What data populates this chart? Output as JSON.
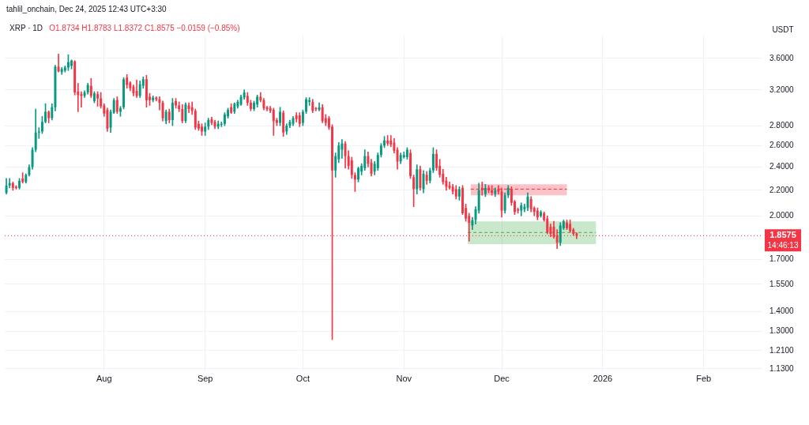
{
  "chart_data": {
    "type": "candlestick",
    "title": "XRP · 1D",
    "subtitle": "O1.8734 H1.8783 L1.8372 C1.8575 −0.0159 (−0.85%)",
    "ylabel": "USDT",
    "annotations": [
      "tahlil_onchain, Dec 24, 2025 12:43 UTC+3:30"
    ],
    "log": "y",
    "grid": true,
    "xlim": [
      "2025-07-01T12:00",
      "2026-02-19"
    ],
    "xticks": [
      {
        "value": "2025-08-01",
        "label": "Aug"
      },
      {
        "value": "2025-09-01",
        "label": "Sep"
      },
      {
        "value": "2025-10-01",
        "label": "Oct"
      },
      {
        "value": "2025-11-01",
        "label": "Nov"
      },
      {
        "value": "2025-12-01",
        "label": "Dec"
      },
      {
        "value": "2026-01-01",
        "label": "2026"
      },
      {
        "value": "2026-02-01",
        "label": "Feb"
      }
    ],
    "ylim": [
      1.12,
      3.92
    ],
    "yticks": [
      {
        "value": 3.6,
        "label": "3.6000"
      },
      {
        "value": 3.2,
        "label": "3.2000"
      },
      {
        "value": 2.8,
        "label": "2.8000"
      },
      {
        "value": 2.6,
        "label": "2.6000"
      },
      {
        "value": 2.4,
        "label": "2.4000"
      },
      {
        "value": 2.2,
        "label": "2.2000"
      },
      {
        "value": 2.0,
        "label": "2.0000"
      },
      {
        "value": 1.7,
        "label": "1.7000"
      },
      {
        "value": 1.55,
        "label": "1.5500"
      },
      {
        "value": 1.4,
        "label": "1.4000"
      },
      {
        "value": 1.3,
        "label": "1.3000"
      },
      {
        "value": 1.21,
        "label": "1.2100"
      },
      {
        "value": 1.13,
        "label": "1.1300"
      }
    ],
    "ref_lines": [
      {
        "axis": "y",
        "value": 1.8575,
        "label": "1.8575\n14:46:13",
        "color": "#f23645",
        "line_style": "dotted"
      }
    ],
    "x": [
      "2025-07-02",
      "2025-07-03",
      "2025-07-04",
      "2025-07-05",
      "2025-07-06",
      "2025-07-07",
      "2025-07-08",
      "2025-07-09",
      "2025-07-10",
      "2025-07-11",
      "2025-07-12",
      "2025-07-13",
      "2025-07-14",
      "2025-07-15",
      "2025-07-16",
      "2025-07-17",
      "2025-07-18",
      "2025-07-19",
      "2025-07-20",
      "2025-07-21",
      "2025-07-22",
      "2025-07-23",
      "2025-07-24",
      "2025-07-25",
      "2025-07-26",
      "2025-07-27",
      "2025-07-28",
      "2025-07-29",
      "2025-07-30",
      "2025-07-31",
      "2025-08-01",
      "2025-08-02",
      "2025-08-03",
      "2025-08-04",
      "2025-08-05",
      "2025-08-06",
      "2025-08-07",
      "2025-08-08",
      "2025-08-09",
      "2025-08-10",
      "2025-08-11",
      "2025-08-12",
      "2025-08-13",
      "2025-08-14",
      "2025-08-15",
      "2025-08-16",
      "2025-08-17",
      "2025-08-18",
      "2025-08-19",
      "2025-08-20",
      "2025-08-21",
      "2025-08-22",
      "2025-08-23",
      "2025-08-24",
      "2025-08-25",
      "2025-08-26",
      "2025-08-27",
      "2025-08-28",
      "2025-08-29",
      "2025-08-30",
      "2025-08-31",
      "2025-09-01",
      "2025-09-02",
      "2025-09-03",
      "2025-09-04",
      "2025-09-05",
      "2025-09-06",
      "2025-09-07",
      "2025-09-08",
      "2025-09-09",
      "2025-09-10",
      "2025-09-11",
      "2025-09-12",
      "2025-09-13",
      "2025-09-14",
      "2025-09-15",
      "2025-09-16",
      "2025-09-17",
      "2025-09-18",
      "2025-09-19",
      "2025-09-20",
      "2025-09-21",
      "2025-09-22",
      "2025-09-23",
      "2025-09-24",
      "2025-09-25",
      "2025-09-26",
      "2025-09-27",
      "2025-09-28",
      "2025-09-29",
      "2025-09-30",
      "2025-10-01",
      "2025-10-02",
      "2025-10-03",
      "2025-10-04",
      "2025-10-05",
      "2025-10-06",
      "2025-10-07",
      "2025-10-08",
      "2025-10-09",
      "2025-10-10",
      "2025-10-11",
      "2025-10-12",
      "2025-10-13",
      "2025-10-14",
      "2025-10-15",
      "2025-10-16",
      "2025-10-17",
      "2025-10-18",
      "2025-10-19",
      "2025-10-20",
      "2025-10-21",
      "2025-10-22",
      "2025-10-23",
      "2025-10-24",
      "2025-10-25",
      "2025-10-26",
      "2025-10-27",
      "2025-10-28",
      "2025-10-29",
      "2025-10-30",
      "2025-10-31",
      "2025-11-01",
      "2025-11-02",
      "2025-11-03",
      "2025-11-04",
      "2025-11-05",
      "2025-11-06",
      "2025-11-07",
      "2025-11-08",
      "2025-11-09",
      "2025-11-10",
      "2025-11-11",
      "2025-11-12",
      "2025-11-13",
      "2025-11-14",
      "2025-11-15",
      "2025-11-16",
      "2025-11-17",
      "2025-11-18",
      "2025-11-19",
      "2025-11-20",
      "2025-11-21",
      "2025-11-22",
      "2025-11-23",
      "2025-11-24",
      "2025-11-25",
      "2025-11-26",
      "2025-11-27",
      "2025-11-28",
      "2025-11-29",
      "2025-11-30",
      "2025-12-01",
      "2025-12-02",
      "2025-12-03",
      "2025-12-04",
      "2025-12-05",
      "2025-12-06",
      "2025-12-07",
      "2025-12-08",
      "2025-12-09",
      "2025-12-10",
      "2025-12-11",
      "2025-12-12",
      "2025-12-13",
      "2025-12-14",
      "2025-12-15",
      "2025-12-16",
      "2025-12-17",
      "2025-12-18",
      "2025-12-19",
      "2025-12-20",
      "2025-12-21",
      "2025-12-22",
      "2025-12-23",
      "2025-12-24"
    ],
    "ohlc": [
      [
        2.18,
        2.3,
        2.17,
        2.24
      ],
      [
        2.24,
        2.3,
        2.22,
        2.26
      ],
      [
        2.26,
        2.27,
        2.2,
        2.22
      ],
      [
        2.23,
        2.24,
        2.21,
        2.22
      ],
      [
        2.22,
        2.3,
        2.21,
        2.28
      ],
      [
        2.3,
        2.35,
        2.26,
        2.27
      ],
      [
        2.27,
        2.34,
        2.26,
        2.33
      ],
      [
        2.33,
        2.42,
        2.32,
        2.4
      ],
      [
        2.4,
        2.58,
        2.38,
        2.56
      ],
      [
        2.56,
        2.98,
        2.54,
        2.73
      ],
      [
        2.73,
        2.78,
        2.67,
        2.74
      ],
      [
        2.74,
        2.9,
        2.72,
        2.84
      ],
      [
        2.84,
        3.04,
        2.83,
        2.95
      ],
      [
        2.95,
        2.96,
        2.83,
        2.88
      ],
      [
        2.88,
        3.04,
        2.86,
        3.0
      ],
      [
        3.0,
        3.51,
        2.96,
        3.49
      ],
      [
        3.49,
        3.66,
        3.42,
        3.43
      ],
      [
        3.42,
        3.48,
        3.39,
        3.46
      ],
      [
        3.44,
        3.5,
        3.42,
        3.48
      ],
      [
        3.48,
        3.65,
        3.44,
        3.55
      ],
      [
        3.5,
        3.58,
        3.46,
        3.57
      ],
      [
        3.56,
        3.57,
        3.14,
        3.17
      ],
      [
        3.18,
        3.28,
        2.95,
        3.14
      ],
      [
        3.15,
        3.18,
        3.0,
        3.13
      ],
      [
        3.13,
        3.19,
        3.11,
        3.17
      ],
      [
        3.17,
        3.28,
        3.15,
        3.26
      ],
      [
        3.25,
        3.34,
        3.11,
        3.13
      ],
      [
        3.07,
        3.18,
        3.05,
        3.16
      ],
      [
        3.15,
        3.18,
        3.01,
        3.1
      ],
      [
        3.1,
        3.17,
        2.99,
        3.01
      ],
      [
        3.02,
        3.04,
        2.9,
        2.93
      ],
      [
        2.97,
        2.99,
        2.74,
        2.77
      ],
      [
        2.78,
        2.97,
        2.73,
        2.95
      ],
      [
        2.94,
        3.1,
        2.93,
        3.08
      ],
      [
        3.08,
        3.12,
        2.93,
        2.95
      ],
      [
        2.95,
        3.01,
        2.9,
        2.99
      ],
      [
        3.0,
        3.35,
        2.98,
        3.33
      ],
      [
        3.35,
        3.39,
        3.22,
        3.26
      ],
      [
        3.29,
        3.3,
        3.19,
        3.22
      ],
      [
        3.24,
        3.26,
        3.13,
        3.16
      ],
      [
        3.19,
        3.32,
        3.11,
        3.13
      ],
      [
        3.13,
        3.31,
        3.11,
        3.27
      ],
      [
        3.25,
        3.36,
        3.22,
        3.33
      ],
      [
        3.33,
        3.38,
        3.0,
        3.08
      ],
      [
        3.12,
        3.16,
        3.02,
        3.08
      ],
      [
        3.08,
        3.13,
        3.06,
        3.11
      ],
      [
        3.11,
        3.12,
        3.07,
        3.09
      ],
      [
        3.09,
        3.12,
        2.97,
        3.05
      ],
      [
        3.05,
        3.07,
        2.85,
        2.88
      ],
      [
        2.85,
        2.97,
        2.82,
        2.95
      ],
      [
        2.95,
        2.98,
        2.83,
        2.86
      ],
      [
        2.86,
        3.1,
        2.8,
        3.05
      ],
      [
        3.07,
        3.1,
        2.99,
        3.02
      ],
      [
        3.02,
        3.06,
        2.95,
        2.98
      ],
      [
        2.98,
        3.03,
        2.83,
        2.85
      ],
      [
        2.85,
        3.05,
        2.83,
        3.03
      ],
      [
        3.02,
        3.05,
        2.94,
        2.98
      ],
      [
        3.0,
        3.06,
        2.92,
        2.96
      ],
      [
        2.96,
        2.98,
        2.76,
        2.78
      ],
      [
        2.82,
        2.85,
        2.75,
        2.77
      ],
      [
        2.79,
        2.82,
        2.7,
        2.74
      ],
      [
        2.74,
        2.83,
        2.7,
        2.79
      ],
      [
        2.79,
        2.88,
        2.76,
        2.86
      ],
      [
        2.87,
        2.89,
        2.81,
        2.83
      ],
      [
        2.84,
        2.86,
        2.77,
        2.79
      ],
      [
        2.79,
        2.85,
        2.77,
        2.82
      ],
      [
        2.81,
        2.84,
        2.79,
        2.82
      ],
      [
        2.82,
        2.94,
        2.8,
        2.92
      ],
      [
        2.9,
        2.99,
        2.88,
        2.97
      ],
      [
        3.0,
        3.04,
        2.93,
        2.94
      ],
      [
        2.95,
        3.05,
        2.93,
        3.04
      ],
      [
        3.01,
        3.08,
        2.99,
        3.06
      ],
      [
        3.03,
        3.14,
        3.02,
        3.12
      ],
      [
        3.11,
        3.2,
        3.09,
        3.17
      ],
      [
        3.13,
        3.17,
        3.02,
        3.05
      ],
      [
        3.05,
        3.08,
        2.96,
        2.98
      ],
      [
        2.98,
        3.07,
        2.96,
        3.05
      ],
      [
        3.03,
        3.14,
        3.0,
        3.12
      ],
      [
        3.12,
        3.17,
        3.06,
        3.08
      ],
      [
        3.08,
        3.1,
        2.97,
        2.99
      ],
      [
        3.0,
        3.01,
        2.96,
        2.98
      ],
      [
        2.99,
        3.01,
        2.94,
        2.96
      ],
      [
        2.97,
        2.99,
        2.7,
        2.85
      ],
      [
        2.86,
        2.88,
        2.8,
        2.83
      ],
      [
        2.83,
        3.0,
        2.8,
        2.95
      ],
      [
        2.94,
        2.96,
        2.69,
        2.73
      ],
      [
        2.74,
        2.82,
        2.71,
        2.8
      ],
      [
        2.8,
        2.86,
        2.78,
        2.84
      ],
      [
        2.82,
        2.9,
        2.8,
        2.88
      ],
      [
        2.91,
        2.94,
        2.84,
        2.87
      ],
      [
        2.91,
        2.94,
        2.79,
        2.82
      ],
      [
        2.83,
        2.97,
        2.8,
        2.95
      ],
      [
        2.95,
        3.11,
        2.93,
        3.09
      ],
      [
        3.06,
        3.11,
        3.02,
        3.08
      ],
      [
        3.06,
        3.09,
        2.94,
        2.96
      ],
      [
        2.99,
        3.0,
        2.96,
        2.98
      ],
      [
        2.97,
        3.05,
        2.96,
        3.0
      ],
      [
        3.0,
        3.03,
        2.83,
        2.85
      ],
      [
        2.88,
        2.92,
        2.8,
        2.83
      ],
      [
        2.88,
        2.9,
        2.76,
        2.78
      ],
      [
        2.79,
        2.81,
        1.26,
        2.37
      ],
      [
        2.37,
        2.53,
        2.31,
        2.5
      ],
      [
        2.47,
        2.63,
        2.44,
        2.6
      ],
      [
        2.56,
        2.66,
        2.48,
        2.62
      ],
      [
        2.62,
        2.64,
        2.39,
        2.5
      ],
      [
        2.5,
        2.55,
        2.38,
        2.41
      ],
      [
        2.46,
        2.49,
        2.3,
        2.33
      ],
      [
        2.33,
        2.35,
        2.19,
        2.29
      ],
      [
        2.29,
        2.4,
        2.27,
        2.39
      ],
      [
        2.36,
        2.43,
        2.33,
        2.41
      ],
      [
        2.39,
        2.56,
        2.37,
        2.5
      ],
      [
        2.5,
        2.54,
        2.4,
        2.43
      ],
      [
        2.44,
        2.47,
        2.32,
        2.34
      ],
      [
        2.36,
        2.45,
        2.33,
        2.43
      ],
      [
        2.39,
        2.53,
        2.37,
        2.51
      ],
      [
        2.51,
        2.62,
        2.49,
        2.6
      ],
      [
        2.6,
        2.69,
        2.58,
        2.65
      ],
      [
        2.65,
        2.7,
        2.6,
        2.62
      ],
      [
        2.65,
        2.7,
        2.59,
        2.61
      ],
      [
        2.63,
        2.67,
        2.53,
        2.55
      ],
      [
        2.56,
        2.58,
        2.38,
        2.45
      ],
      [
        2.45,
        2.53,
        2.43,
        2.51
      ],
      [
        2.49,
        2.54,
        2.48,
        2.51
      ],
      [
        2.49,
        2.58,
        2.47,
        2.56
      ],
      [
        2.53,
        2.56,
        2.3,
        2.32
      ],
      [
        2.31,
        2.33,
        2.07,
        2.21
      ],
      [
        2.21,
        2.42,
        2.17,
        2.38
      ],
      [
        2.38,
        2.41,
        2.2,
        2.22
      ],
      [
        2.21,
        2.37,
        2.18,
        2.34
      ],
      [
        2.33,
        2.36,
        2.25,
        2.28
      ],
      [
        2.28,
        2.39,
        2.26,
        2.37
      ],
      [
        2.37,
        2.58,
        2.35,
        2.52
      ],
      [
        2.52,
        2.56,
        2.37,
        2.39
      ],
      [
        2.41,
        2.47,
        2.31,
        2.33
      ],
      [
        2.34,
        2.38,
        2.25,
        2.27
      ],
      [
        2.28,
        2.31,
        2.2,
        2.23
      ],
      [
        2.24,
        2.27,
        2.21,
        2.22
      ],
      [
        2.23,
        2.25,
        2.17,
        2.19
      ],
      [
        2.21,
        2.24,
        2.13,
        2.15
      ],
      [
        2.15,
        2.23,
        2.12,
        2.21
      ],
      [
        2.22,
        2.24,
        2.01,
        2.02
      ],
      [
        2.06,
        2.09,
        1.96,
        1.98
      ],
      [
        2.0,
        2.02,
        1.82,
        1.95
      ],
      [
        1.93,
        1.99,
        1.9,
        1.97
      ],
      [
        1.97,
        2.07,
        1.94,
        2.05
      ],
      [
        2.04,
        2.26,
        2.02,
        2.2
      ],
      [
        2.22,
        2.27,
        2.16,
        2.2
      ],
      [
        2.17,
        2.25,
        2.15,
        2.22
      ],
      [
        2.22,
        2.24,
        2.18,
        2.2
      ],
      [
        2.2,
        2.24,
        2.16,
        2.18
      ],
      [
        2.17,
        2.22,
        2.15,
        2.2
      ],
      [
        2.21,
        2.24,
        2.17,
        2.19
      ],
      [
        2.19,
        2.22,
        1.99,
        2.04
      ],
      [
        2.04,
        2.18,
        2.02,
        2.16
      ],
      [
        2.16,
        2.24,
        2.14,
        2.22
      ],
      [
        2.21,
        2.23,
        2.08,
        2.1
      ],
      [
        2.11,
        2.12,
        2.01,
        2.03
      ],
      [
        2.05,
        2.06,
        2.02,
        2.04
      ],
      [
        2.04,
        2.1,
        2.0,
        2.08
      ],
      [
        2.05,
        2.09,
        2.03,
        2.07
      ],
      [
        2.06,
        2.18,
        2.04,
        2.15
      ],
      [
        2.13,
        2.15,
        2.03,
        2.05
      ],
      [
        2.06,
        2.07,
        2.0,
        2.03
      ],
      [
        2.04,
        2.06,
        1.97,
        1.99
      ],
      [
        2.0,
        2.04,
        1.99,
        2.03
      ],
      [
        2.02,
        2.03,
        1.96,
        1.97
      ],
      [
        1.98,
        2.0,
        1.87,
        1.88
      ],
      [
        1.92,
        1.94,
        1.85,
        1.87
      ],
      [
        1.92,
        1.96,
        1.84,
        1.85
      ],
      [
        1.86,
        1.9,
        1.77,
        1.81
      ],
      [
        1.81,
        1.95,
        1.79,
        1.93
      ],
      [
        1.91,
        1.97,
        1.9,
        1.96
      ],
      [
        1.95,
        1.97,
        1.9,
        1.91
      ],
      [
        1.94,
        1.97,
        1.88,
        1.89
      ],
      [
        1.9,
        1.91,
        1.86,
        1.87
      ],
      [
        1.8734,
        1.8783,
        1.8372,
        1.8575
      ]
    ],
    "colors": [
      "#089981",
      "#089981",
      "#f23645",
      "#f23645",
      "#089981",
      "#f23645",
      "#089981",
      "#089981",
      "#089981",
      "#089981",
      "#089981",
      "#089981",
      "#089981",
      "#f23645",
      "#089981",
      "#089981",
      "#f23645",
      "#089981",
      "#089981",
      "#089981",
      "#089981",
      "#f23645",
      "#f23645",
      "#f23645",
      "#089981",
      "#089981",
      "#f23645",
      "#089981",
      "#f23645",
      "#f23645",
      "#f23645",
      "#f23645",
      "#089981",
      "#089981",
      "#f23645",
      "#089981",
      "#089981",
      "#f23645",
      "#f23645",
      "#f23645",
      "#f23645",
      "#089981",
      "#089981",
      "#f23645",
      "#f23645",
      "#089981",
      "#f23645",
      "#f23645",
      "#f23645",
      "#089981",
      "#f23645",
      "#089981",
      "#f23645",
      "#f23645",
      "#f23645",
      "#089981",
      "#f23645",
      "#f23645",
      "#f23645",
      "#f23645",
      "#f23645",
      "#089981",
      "#089981",
      "#f23645",
      "#f23645",
      "#089981",
      "#089981",
      "#089981",
      "#089981",
      "#f23645",
      "#089981",
      "#089981",
      "#089981",
      "#089981",
      "#f23645",
      "#f23645",
      "#089981",
      "#089981",
      "#f23645",
      "#f23645",
      "#f23645",
      "#f23645",
      "#f23645",
      "#f23645",
      "#089981",
      "#f23645",
      "#089981",
      "#089981",
      "#089981",
      "#f23645",
      "#f23645",
      "#089981",
      "#089981",
      "#089981",
      "#f23645",
      "#f23645",
      "#089981",
      "#f23645",
      "#f23645",
      "#f23645",
      "#f23645",
      "#089981",
      "#089981",
      "#089981",
      "#f23645",
      "#f23645",
      "#f23645",
      "#f23645",
      "#089981",
      "#089981",
      "#089981",
      "#f23645",
      "#f23645",
      "#089981",
      "#089981",
      "#089981",
      "#089981",
      "#f23645",
      "#f23645",
      "#f23645",
      "#f23645",
      "#089981",
      "#089981",
      "#089981",
      "#f23645",
      "#f23645",
      "#089981",
      "#f23645",
      "#089981",
      "#f23645",
      "#089981",
      "#089981",
      "#f23645",
      "#f23645",
      "#f23645",
      "#f23645",
      "#f23645",
      "#f23645",
      "#f23645",
      "#089981",
      "#f23645",
      "#f23645",
      "#f23645",
      "#089981",
      "#089981",
      "#089981",
      "#f23645",
      "#089981",
      "#f23645",
      "#f23645",
      "#089981",
      "#f23645",
      "#f23645",
      "#089981",
      "#089981",
      "#f23645",
      "#f23645",
      "#f23645",
      "#089981",
      "#089981",
      "#089981",
      "#f23645",
      "#f23645",
      "#f23645",
      "#089981",
      "#f23645",
      "#f23645",
      "#f23645",
      "#f23645",
      "#f23645",
      "#089981",
      "#089981",
      "#f23645",
      "#f23645",
      "#f23645",
      "#f23645"
    ],
    "series": [
      {
        "type": "line",
        "color": "#f23645",
        "line_style": "dashed",
        "x": [
          "2025-11-21T12:00",
          "2025-12-21"
        ],
        "values": [
          2.21,
          2.21
        ],
        "lower": [
          2.16,
          2.16
        ],
        "upper": [
          2.25,
          2.25
        ]
      },
      {
        "type": "line",
        "color": "#4caf50",
        "line_style": "dashed",
        "x": [
          "2025-11-20T14:00",
          "2025-12-29T22:00"
        ],
        "values": [
          1.88,
          1.88
        ],
        "lower": [
          1.8,
          1.8
        ],
        "upper": [
          1.96,
          1.96
        ]
      }
    ]
  }
}
